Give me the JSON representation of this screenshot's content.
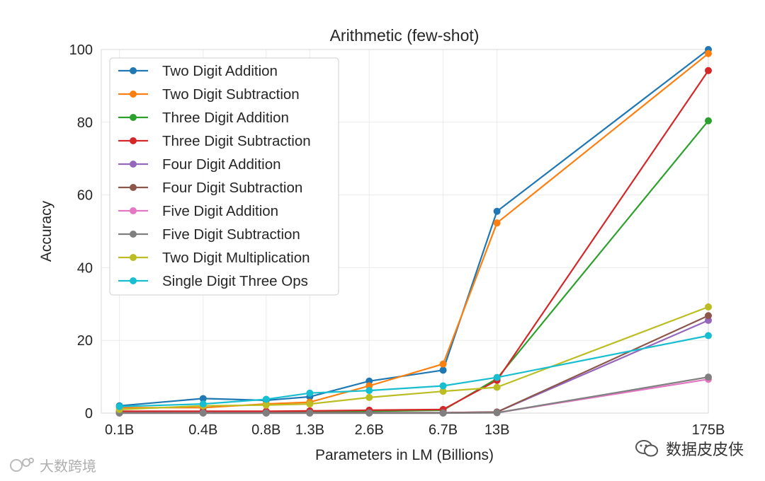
{
  "chart_data": {
    "type": "line",
    "title": "Arithmetic (few-shot)",
    "xlabel": "Parameters in LM (Billions)",
    "ylabel": "Accuracy",
    "categories": [
      "0.1B",
      "0.4B",
      "0.8B",
      "1.3B",
      "2.6B",
      "6.7B",
      "13B",
      "175B"
    ],
    "x_values": [
      0.125,
      0.35,
      0.76,
      1.3,
      2.7,
      6.7,
      13,
      175
    ],
    "x_scale": "log",
    "ylim": [
      0,
      100
    ],
    "yticks": [
      0,
      20,
      40,
      60,
      80,
      100
    ],
    "grid": true,
    "legend_position": "top-left",
    "series": [
      {
        "name": "Two Digit Addition",
        "color": "#1f77b4",
        "values": [
          2.0,
          4.0,
          3.5,
          4.5,
          8.8,
          11.8,
          55.5,
          100.0
        ]
      },
      {
        "name": "Two Digit Subtraction",
        "color": "#ff7f0e",
        "values": [
          1.5,
          1.5,
          2.5,
          3.0,
          7.5,
          13.5,
          52.3,
          98.9
        ]
      },
      {
        "name": "Three Digit Addition",
        "color": "#2ca02c",
        "values": [
          0.3,
          0.3,
          0.3,
          0.3,
          0.5,
          0.8,
          9.5,
          80.4
        ]
      },
      {
        "name": "Three Digit Subtraction",
        "color": "#d62728",
        "values": [
          0.5,
          0.5,
          0.5,
          0.6,
          0.8,
          1.0,
          9.0,
          94.2
        ]
      },
      {
        "name": "Four Digit Addition",
        "color": "#9467bd",
        "values": [
          0.1,
          0.1,
          0.1,
          0.1,
          0.1,
          0.1,
          0.3,
          25.5
        ]
      },
      {
        "name": "Four Digit Subtraction",
        "color": "#8c564b",
        "values": [
          0.1,
          0.1,
          0.1,
          0.1,
          0.1,
          0.1,
          0.3,
          26.8
        ]
      },
      {
        "name": "Five Digit Addition",
        "color": "#e377c2",
        "values": [
          0.0,
          0.0,
          0.0,
          0.0,
          0.0,
          0.0,
          0.1,
          9.3
        ]
      },
      {
        "name": "Five Digit Subtraction",
        "color": "#7f7f7f",
        "values": [
          0.0,
          0.0,
          0.0,
          0.0,
          0.0,
          0.0,
          0.1,
          9.9
        ]
      },
      {
        "name": "Two Digit Multiplication",
        "color": "#bcbd22",
        "values": [
          1.0,
          2.0,
          2.2,
          2.5,
          4.3,
          6.0,
          7.1,
          29.2
        ]
      },
      {
        "name": "Single Digit Three Ops",
        "color": "#17becf",
        "values": [
          1.8,
          2.5,
          3.8,
          5.5,
          6.2,
          7.5,
          9.8,
          21.3
        ]
      }
    ]
  },
  "watermarks": {
    "right_text": "数据皮皮侠",
    "left_text": "大数跨境"
  }
}
